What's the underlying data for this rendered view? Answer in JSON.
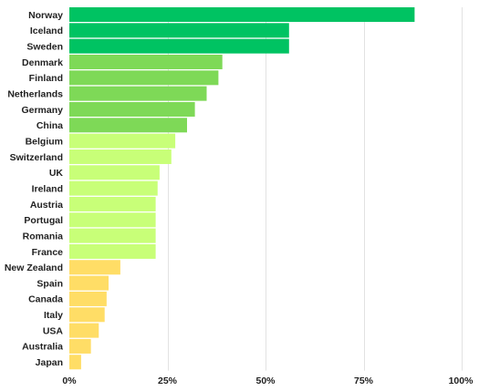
{
  "chart_data": {
    "type": "bar",
    "orientation": "horizontal",
    "categories": [
      "Norway",
      "Iceland",
      "Sweden",
      "Denmark",
      "Finland",
      "Netherlands",
      "Germany",
      "China",
      "Belgium",
      "Switzerland",
      "UK",
      "Ireland",
      "Austria",
      "Portugal",
      "Romania",
      "France",
      "New Zealand",
      "Spain",
      "Canada",
      "Italy",
      "USA",
      "Australia",
      "Japan"
    ],
    "values": [
      88,
      56,
      56,
      39,
      38,
      35,
      32,
      30,
      27,
      26,
      23,
      22.5,
      22,
      22,
      22,
      22,
      13,
      10,
      9.5,
      9,
      7.5,
      5.5,
      3
    ],
    "colors": [
      "#00c362",
      "#00c362",
      "#00c362",
      "#7ed957",
      "#7ed957",
      "#7ed957",
      "#7ed957",
      "#7ed957",
      "#c8ff78",
      "#c8ff78",
      "#c8ff78",
      "#c8ff78",
      "#c8ff78",
      "#c8ff78",
      "#c8ff78",
      "#c8ff78",
      "#ffdd66",
      "#ffdd66",
      "#ffdd66",
      "#ffdd66",
      "#ffdd66",
      "#ffdd66",
      "#ffdd66"
    ],
    "xlim": [
      0,
      100
    ],
    "x_ticks": [
      0,
      25,
      50,
      75,
      100
    ],
    "x_tick_labels": [
      "0%",
      "25%",
      "50%",
      "75%",
      "100%"
    ],
    "grid": true,
    "title": "",
    "xlabel": "",
    "ylabel": ""
  }
}
